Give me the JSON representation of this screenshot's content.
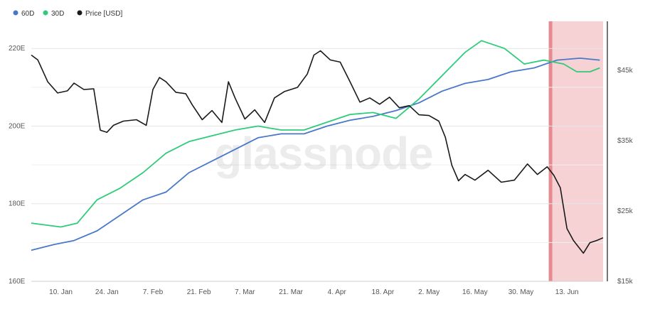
{
  "chart_data": {
    "type": "line",
    "watermark": "glassnode",
    "legend": [
      {
        "label": "60D",
        "color": "#4a78c9"
      },
      {
        "label": "30D",
        "color": "#2ecc7a"
      },
      {
        "label": "Price [USD]",
        "color": "#1a1a1a"
      }
    ],
    "x_ticks": [
      "10. Jan",
      "24. Jan",
      "7. Feb",
      "21. Feb",
      "7. Mar",
      "21. Mar",
      "4. Apr",
      "18. Apr",
      "2. May",
      "16. May",
      "30. May",
      "13. Jun"
    ],
    "x_tick_dates": [
      "2022-01-10",
      "2022-01-24",
      "2022-02-07",
      "2022-02-21",
      "2022-03-07",
      "2022-03-21",
      "2022-04-04",
      "2022-04-18",
      "2022-05-02",
      "2022-05-16",
      "2022-05-30",
      "2022-06-13"
    ],
    "x_range": [
      "2022-01-01",
      "2022-06-24"
    ],
    "y_left": {
      "ticks": [
        "160E",
        "180E",
        "200E",
        "220E"
      ],
      "values": [
        160,
        180,
        200,
        220
      ],
      "range": [
        160,
        227
      ],
      "unit": "E"
    },
    "y_right": {
      "ticks": [
        "$15k",
        "$25k",
        "$35k",
        "$45k"
      ],
      "values": [
        15000,
        25000,
        35000,
        45000
      ],
      "range": [
        15000,
        52000
      ]
    },
    "grid": true,
    "highlight": {
      "start": "2022-06-08",
      "end": "2022-06-24",
      "color": "#f3c3c6",
      "line_date": "2022-06-08"
    },
    "series": [
      {
        "name": "60D",
        "axis": "left",
        "color": "#4a78c9",
        "points": [
          [
            "2022-01-01",
            168
          ],
          [
            "2022-01-08",
            169.5
          ],
          [
            "2022-01-14",
            170.5
          ],
          [
            "2022-01-21",
            173
          ],
          [
            "2022-01-28",
            177
          ],
          [
            "2022-02-04",
            181
          ],
          [
            "2022-02-11",
            183
          ],
          [
            "2022-02-18",
            188
          ],
          [
            "2022-02-25",
            191
          ],
          [
            "2022-03-04",
            194
          ],
          [
            "2022-03-11",
            197
          ],
          [
            "2022-03-18",
            198
          ],
          [
            "2022-03-25",
            198
          ],
          [
            "2022-04-01",
            200
          ],
          [
            "2022-04-08",
            201.5
          ],
          [
            "2022-04-15",
            202.5
          ],
          [
            "2022-04-22",
            204
          ],
          [
            "2022-04-29",
            206
          ],
          [
            "2022-05-06",
            209
          ],
          [
            "2022-05-13",
            211
          ],
          [
            "2022-05-20",
            212
          ],
          [
            "2022-05-27",
            214
          ],
          [
            "2022-06-03",
            215
          ],
          [
            "2022-06-10",
            217
          ],
          [
            "2022-06-17",
            217.5
          ],
          [
            "2022-06-23",
            217
          ]
        ]
      },
      {
        "name": "30D",
        "axis": "left",
        "color": "#2ecc7a",
        "points": [
          [
            "2022-01-01",
            175
          ],
          [
            "2022-01-10",
            174
          ],
          [
            "2022-01-15",
            175
          ],
          [
            "2022-01-21",
            181
          ],
          [
            "2022-01-28",
            184
          ],
          [
            "2022-02-04",
            188
          ],
          [
            "2022-02-11",
            193
          ],
          [
            "2022-02-18",
            196
          ],
          [
            "2022-02-25",
            197.5
          ],
          [
            "2022-03-04",
            199
          ],
          [
            "2022-03-11",
            200
          ],
          [
            "2022-03-18",
            199
          ],
          [
            "2022-03-25",
            199
          ],
          [
            "2022-04-01",
            201
          ],
          [
            "2022-04-08",
            203
          ],
          [
            "2022-04-15",
            203.5
          ],
          [
            "2022-04-22",
            202
          ],
          [
            "2022-04-29",
            207
          ],
          [
            "2022-05-06",
            213
          ],
          [
            "2022-05-13",
            219
          ],
          [
            "2022-05-18",
            222
          ],
          [
            "2022-05-25",
            220
          ],
          [
            "2022-05-31",
            216
          ],
          [
            "2022-06-06",
            217
          ],
          [
            "2022-06-12",
            216
          ],
          [
            "2022-06-16",
            214
          ],
          [
            "2022-06-20",
            214
          ],
          [
            "2022-06-23",
            215
          ]
        ]
      },
      {
        "name": "Price [USD]",
        "axis": "right",
        "color": "#1a1a1a",
        "points": [
          [
            "2022-01-01",
            47200
          ],
          [
            "2022-01-03",
            46500
          ],
          [
            "2022-01-06",
            43400
          ],
          [
            "2022-01-09",
            41800
          ],
          [
            "2022-01-12",
            42100
          ],
          [
            "2022-01-14",
            43200
          ],
          [
            "2022-01-17",
            42300
          ],
          [
            "2022-01-20",
            42400
          ],
          [
            "2022-01-22",
            36500
          ],
          [
            "2022-01-24",
            36200
          ],
          [
            "2022-01-26",
            37200
          ],
          [
            "2022-01-29",
            37800
          ],
          [
            "2022-02-02",
            38000
          ],
          [
            "2022-02-05",
            37200
          ],
          [
            "2022-02-07",
            42300
          ],
          [
            "2022-02-09",
            44000
          ],
          [
            "2022-02-11",
            43400
          ],
          [
            "2022-02-14",
            41900
          ],
          [
            "2022-02-17",
            41700
          ],
          [
            "2022-02-19",
            40100
          ],
          [
            "2022-02-22",
            38000
          ],
          [
            "2022-02-25",
            39300
          ],
          [
            "2022-02-28",
            37600
          ],
          [
            "2022-03-02",
            43400
          ],
          [
            "2022-03-04",
            41100
          ],
          [
            "2022-03-07",
            38100
          ],
          [
            "2022-03-10",
            39400
          ],
          [
            "2022-03-13",
            37600
          ],
          [
            "2022-03-16",
            41100
          ],
          [
            "2022-03-19",
            42000
          ],
          [
            "2022-03-23",
            42600
          ],
          [
            "2022-03-26",
            44500
          ],
          [
            "2022-03-28",
            47200
          ],
          [
            "2022-03-30",
            47800
          ],
          [
            "2022-04-02",
            46500
          ],
          [
            "2022-04-05",
            46200
          ],
          [
            "2022-04-08",
            43400
          ],
          [
            "2022-04-11",
            40500
          ],
          [
            "2022-04-14",
            41100
          ],
          [
            "2022-04-17",
            40200
          ],
          [
            "2022-04-20",
            41200
          ],
          [
            "2022-04-23",
            39700
          ],
          [
            "2022-04-26",
            40000
          ],
          [
            "2022-04-29",
            38700
          ],
          [
            "2022-05-02",
            38600
          ],
          [
            "2022-05-05",
            37800
          ],
          [
            "2022-05-07",
            35500
          ],
          [
            "2022-05-09",
            31500
          ],
          [
            "2022-05-11",
            29300
          ],
          [
            "2022-05-13",
            30200
          ],
          [
            "2022-05-16",
            29400
          ],
          [
            "2022-05-20",
            30800
          ],
          [
            "2022-05-24",
            29100
          ],
          [
            "2022-05-28",
            29400
          ],
          [
            "2022-06-01",
            31700
          ],
          [
            "2022-06-04",
            30200
          ],
          [
            "2022-06-07",
            31300
          ],
          [
            "2022-06-09",
            30100
          ],
          [
            "2022-06-11",
            28300
          ],
          [
            "2022-06-13",
            22500
          ],
          [
            "2022-06-15",
            20800
          ],
          [
            "2022-06-18",
            19000
          ],
          [
            "2022-06-20",
            20500
          ],
          [
            "2022-06-22",
            20800
          ],
          [
            "2022-06-24",
            21200
          ]
        ]
      }
    ]
  }
}
